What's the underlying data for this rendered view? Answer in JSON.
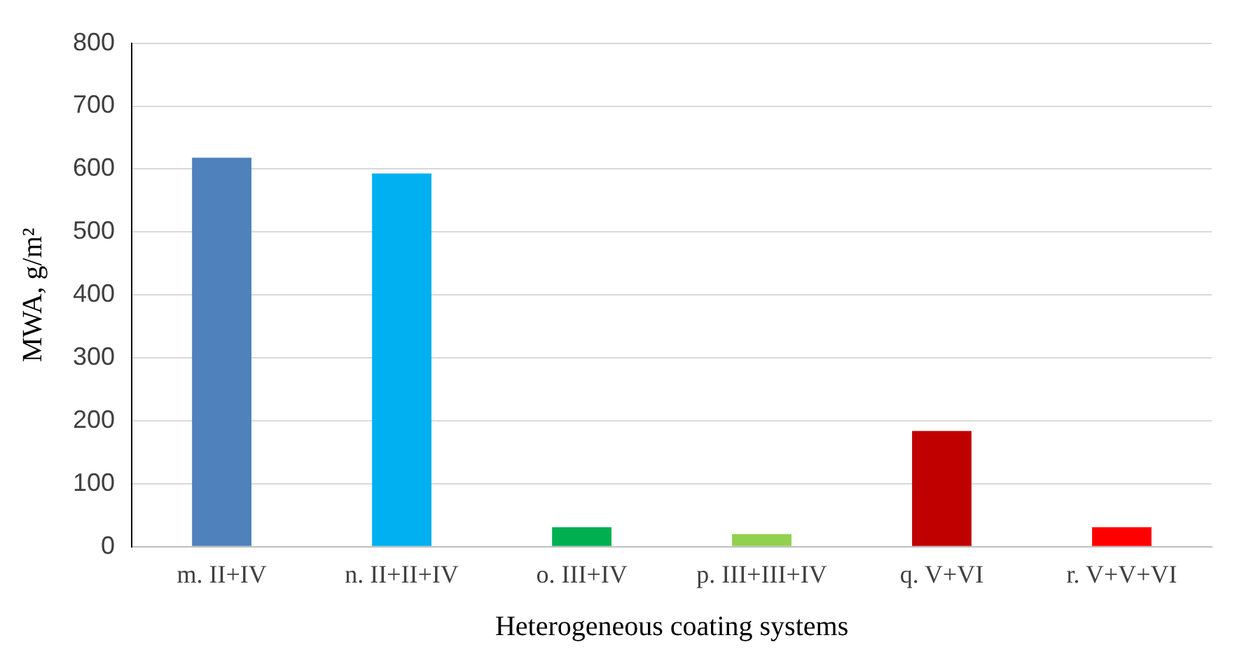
{
  "chart_data": {
    "type": "bar",
    "xlabel": "Heterogeneous coating systems",
    "ylabel": "MWA, g/m²",
    "categories": [
      "m. II+IV",
      "n. II+II+IV",
      "o. III+IV",
      "p. III+III+IV",
      "q. V+VI",
      "r. V+V+VI"
    ],
    "values": [
      618,
      593,
      31,
      20,
      184,
      31
    ],
    "colors": [
      "#4f81bd",
      "#00b0f0",
      "#00b050",
      "#92d050",
      "#c00000",
      "#ff0000"
    ],
    "ylim": [
      0,
      800
    ],
    "yticks": [
      0,
      100,
      200,
      300,
      400,
      500,
      600,
      700,
      800
    ],
    "grid": "y"
  }
}
